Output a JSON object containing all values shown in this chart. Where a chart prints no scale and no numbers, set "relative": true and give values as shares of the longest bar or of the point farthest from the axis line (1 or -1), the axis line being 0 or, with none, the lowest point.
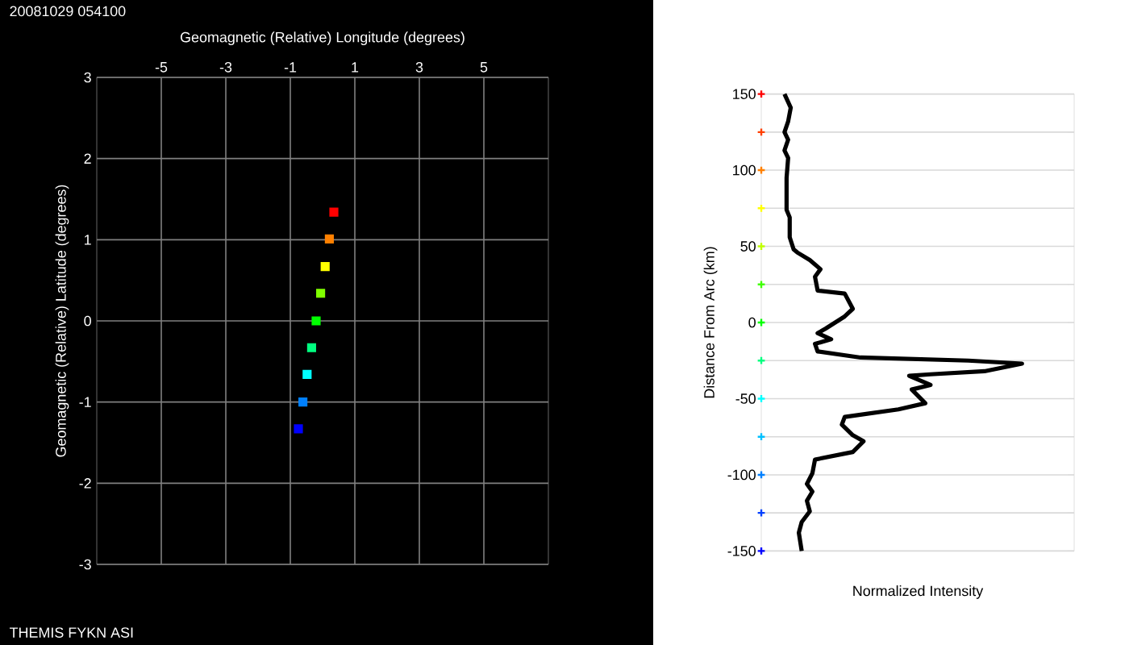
{
  "chart_data": [
    {
      "type": "scatter",
      "title": "20081029 054100",
      "annotations": [
        "THEMIS FYKN ASI"
      ],
      "xlabel": "Geomagnetic (Relative) Longitude (degrees)",
      "ylabel": "Geomagnetic (Relative) Latitude (degrees)",
      "xlim": [
        -7,
        7
      ],
      "ylim": [
        -3,
        3
      ],
      "xticks": [
        -5,
        -3,
        -1,
        1,
        3,
        5
      ],
      "yticks": [
        -3,
        -2,
        -1,
        0,
        1,
        2,
        3
      ],
      "grid": true,
      "marker": "square",
      "series": [
        {
          "x": [
            -0.75,
            -0.61,
            -0.48,
            -0.34,
            -0.2,
            -0.06,
            0.08,
            0.21,
            0.35
          ],
          "values": [
            -1.33,
            -1.0,
            -0.66,
            -0.33,
            0.0,
            0.34,
            0.67,
            1.01,
            1.34
          ],
          "colors": [
            "#0000ff",
            "#0080ff",
            "#00ffff",
            "#00ff80",
            "#00ff00",
            "#80ff00",
            "#ffff00",
            "#ff8000",
            "#ff0000"
          ]
        }
      ]
    },
    {
      "type": "line",
      "orientation": "horizontal",
      "xlabel": "Normalized Intensity",
      "ylabel": "Distance From Arc (km)",
      "relative": true,
      "ylim": [
        -150,
        150
      ],
      "yticks": [
        -150,
        {
          "value": -125,
          "label": null
        },
        -100,
        {
          "value": -75,
          "label": null
        },
        -50,
        {
          "value": -25,
          "label": null
        },
        0,
        {
          "value": 25,
          "label": null
        },
        50,
        {
          "value": 75,
          "label": null
        },
        100,
        {
          "value": 125,
          "label": null
        },
        150
      ],
      "grid": "y",
      "series": [
        {
          "type": "line",
          "color": "#000000",
          "values": [
            0.089,
            0.113,
            0.103,
            0.089,
            0.103,
            0.089,
            0.103,
            0.097,
            0.097,
            0.097,
            0.109,
            0.109,
            0.124,
            0.138,
            0.186,
            0.227,
            0.206,
            0.216,
            0.32,
            0.351,
            0.32,
            0.247,
            0.216,
            0.268,
            0.206,
            0.216,
            0.381,
            0.794,
            1.0,
            0.856,
            0.649,
            0.567,
            0.649,
            0.577,
            0.629,
            0.526,
            0.32,
            0.309,
            0.351,
            0.392,
            0.351,
            0.206,
            0.196,
            0.175,
            0.196,
            0.175,
            0.186,
            0.155,
            0.144,
            0.155
          ],
          "x": [
            150,
            141,
            132,
            125,
            120,
            113,
            108,
            95,
            81,
            74,
            69,
            56,
            48,
            46,
            41,
            35,
            30,
            21,
            19,
            9,
            4,
            -4,
            -7,
            -11,
            -14,
            -19,
            -23,
            -25,
            -27,
            -32,
            -34,
            -35,
            -41,
            -44,
            -53,
            -57,
            -62,
            -67,
            -74,
            -78,
            -85,
            -90,
            -99,
            -106,
            -111,
            -117,
            -124,
            -131,
            -138,
            -150
          ]
        },
        {
          "type": "scatter",
          "marker": "cross",
          "values": [
            0,
            0,
            0,
            0,
            0,
            0,
            0,
            0,
            0,
            0,
            0,
            0,
            0
          ],
          "x": [
            -150,
            -125,
            -100,
            -75,
            -50,
            -25,
            0,
            25,
            50,
            75,
            100,
            125,
            150
          ],
          "colors": [
            "#0000ff",
            "#0040ff",
            "#0080ff",
            "#00c0ff",
            "#00ffff",
            "#00ff80",
            "#00ff00",
            "#40ff00",
            "#c0ff00",
            "#ffff00",
            "#ff8000",
            "#ff4000",
            "#ff0000"
          ]
        }
      ]
    }
  ]
}
